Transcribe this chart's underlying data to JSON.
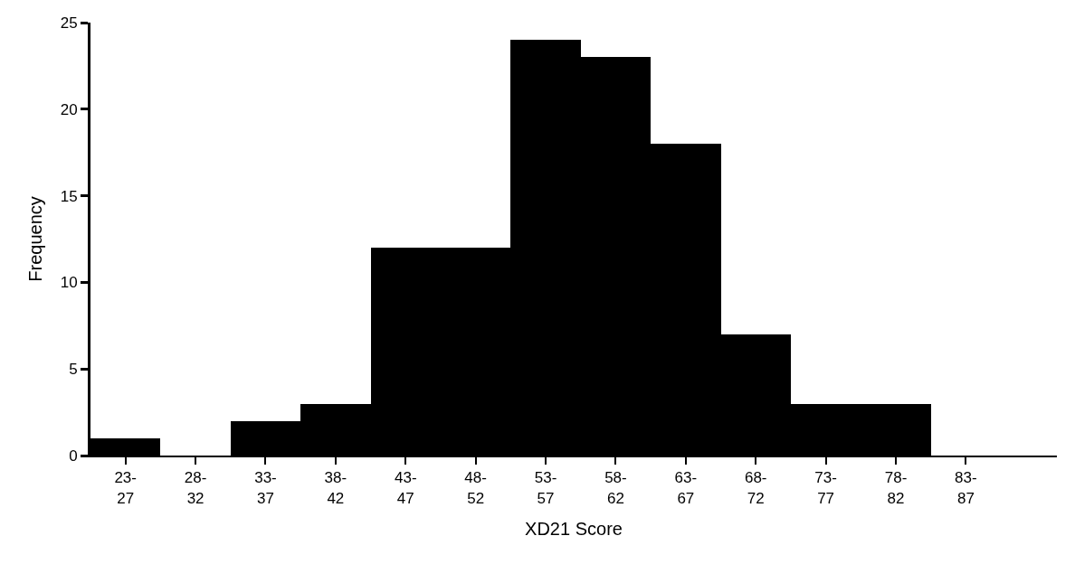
{
  "chart_data": {
    "type": "bar",
    "xlabel": "XD21 Score",
    "ylabel": "Frequency",
    "categories": [
      "23-27",
      "28-32",
      "33-37",
      "38-42",
      "43-47",
      "48-52",
      "53-57",
      "58-62",
      "63-67",
      "68-72",
      "73-77",
      "78-82",
      "83-87"
    ],
    "values": [
      1,
      0,
      2,
      3,
      12,
      12,
      24,
      23,
      18,
      7,
      3,
      3,
      0
    ],
    "color": "#000000",
    "ylim": [
      0,
      25
    ],
    "yticks": [
      0,
      5,
      10,
      15,
      20,
      25
    ]
  }
}
